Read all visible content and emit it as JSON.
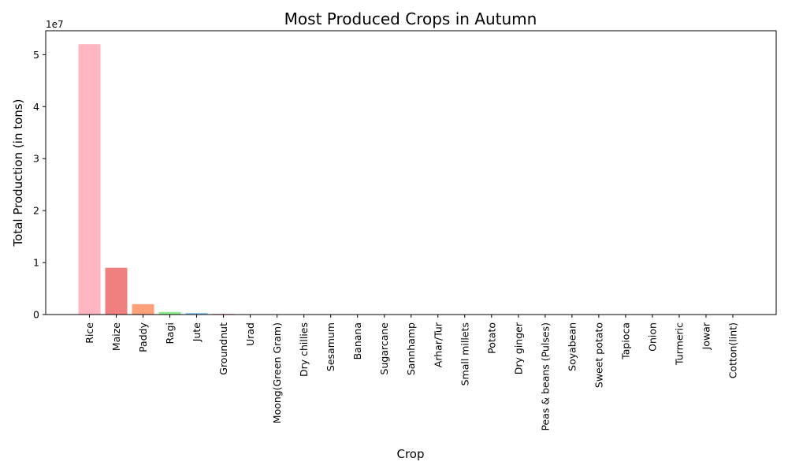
{
  "chart_data": {
    "type": "bar",
    "title": "Most Produced Crops in Autumn",
    "xlabel": "Crop",
    "ylabel": "Total Production (in tons)",
    "y_offset_label": "1e7",
    "y_scale_factor": 10000000,
    "ylim": [
      0,
      54600000
    ],
    "yticks": [
      0,
      10000000,
      20000000,
      30000000,
      40000000,
      50000000
    ],
    "ytick_labels": [
      "0",
      "1",
      "2",
      "3",
      "4",
      "5"
    ],
    "grid": false,
    "categories": [
      "Rice",
      "Maize",
      "Paddy",
      "Ragi",
      "Jute",
      "Groundnut",
      "Urad",
      "Moong(Green Gram)",
      "Dry chillies",
      "Sesamum",
      "Banana",
      "Sugarcane",
      "Sannhamp",
      "Arhar/Tur",
      "Small millets",
      "Potato",
      "Dry ginger",
      "Peas & beans (Pulses)",
      "Soyabean",
      "Sweet potato",
      "Tapioca",
      "Onion",
      "Turmeric",
      "Jowar",
      "Cotton(lint)"
    ],
    "values": [
      52000000,
      9000000,
      2000000,
      500000,
      300000,
      150000,
      60000,
      40000,
      25000,
      20000,
      15000,
      12000,
      10000,
      8000,
      6000,
      5000,
      4000,
      3000,
      2500,
      2000,
      1500,
      1200,
      1000,
      800,
      500
    ],
    "colors": [
      "#ffb6c1",
      "#f08080",
      "#ffa07a",
      "#90ee90",
      "#87cefa",
      "#ffb6c1",
      "#f08080",
      "#ffa07a",
      "#90ee90",
      "#87cefa",
      "#ffb6c1",
      "#f08080",
      "#ffa07a",
      "#90ee90",
      "#87cefa",
      "#ffb6c1",
      "#f08080",
      "#ffa07a",
      "#90ee90",
      "#87cefa",
      "#ffb6c1",
      "#f08080",
      "#ffa07a",
      "#90ee90",
      "#87cefa"
    ]
  }
}
